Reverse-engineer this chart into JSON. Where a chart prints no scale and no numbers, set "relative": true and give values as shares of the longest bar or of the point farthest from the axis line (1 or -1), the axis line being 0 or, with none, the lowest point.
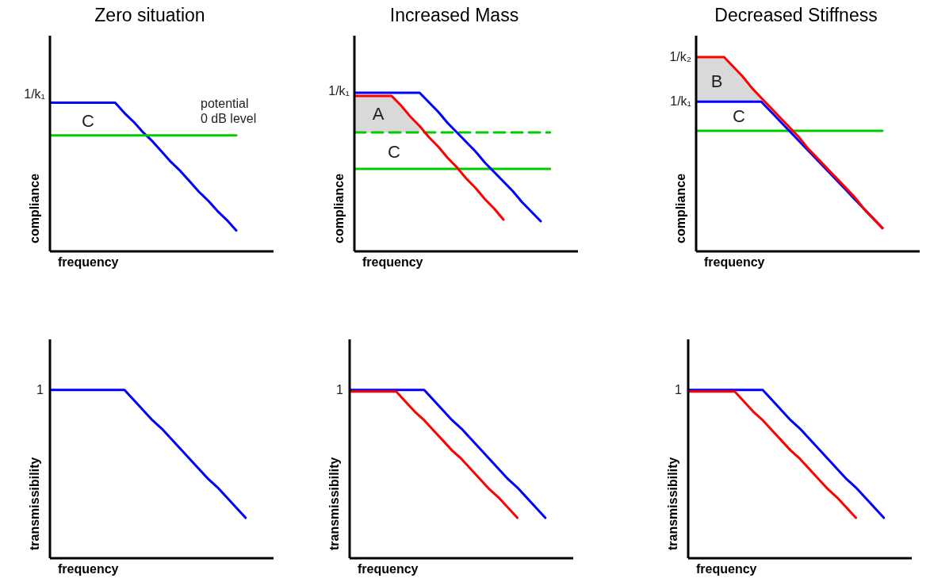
{
  "chart_data": [
    {
      "type": "line",
      "title": "Zero situation",
      "xlabel": "frequency",
      "ylabel": "compliance",
      "relative": true,
      "categories": [
        null,
        null,
        null,
        null,
        null,
        null,
        null,
        null,
        null,
        null,
        null,
        null,
        null,
        null,
        null,
        null,
        null,
        null,
        null,
        null,
        null,
        null
      ],
      "series": [
        {
          "color": "#0000ff",
          "values": [
            1,
            1,
            1,
            1,
            1,
            1,
            1,
            1,
            0.93,
            0.87,
            0.8,
            0.74,
            0.67,
            0.6,
            0.54,
            0.47,
            0.4,
            0.34,
            0.27,
            0.21,
            0.14,
            null
          ]
        },
        {
          "color": "#00cc00",
          "values": [
            0.78,
            0.78,
            0.78,
            0.78,
            0.78,
            0.78,
            0.78,
            0.78,
            0.78,
            0.78,
            0.78,
            0.78,
            0.78,
            0.78,
            0.78,
            0.78,
            0.78,
            0.78,
            0.78,
            0.78,
            0.78,
            null
          ]
        }
      ],
      "annotations": [
        "1/k₁",
        "C",
        "potential 0 dB level"
      ]
    },
    {
      "type": "line",
      "title": "Increased Mass",
      "xlabel": "frequency",
      "ylabel": "compliance",
      "relative": true,
      "categories": [
        null,
        null,
        null,
        null,
        null,
        null,
        null,
        null,
        null,
        null,
        null,
        null,
        null,
        null,
        null,
        null,
        null,
        null,
        null,
        null,
        null,
        null
      ],
      "series": [
        {
          "color": "#00cc00",
          "line_style": "dashed",
          "values": [
            0.75,
            0.75,
            0.75,
            0.75,
            0.75,
            0.75,
            0.75,
            0.75,
            0.75,
            0.75,
            0.75,
            0.75,
            0.75,
            0.75,
            0.75,
            0.75,
            0.75,
            0.75,
            0.75,
            0.75,
            0.75,
            0.75
          ]
        },
        {
          "color": "#00cc00",
          "values": [
            0.52,
            0.52,
            0.52,
            0.52,
            0.52,
            0.52,
            0.52,
            0.52,
            0.52,
            0.52,
            0.52,
            0.52,
            0.52,
            0.52,
            0.52,
            0.52,
            0.52,
            0.52,
            0.52,
            0.52,
            0.52,
            0.52
          ]
        },
        {
          "color": "#0000ff",
          "values": [
            1,
            1,
            1,
            1,
            1,
            1,
            1,
            1,
            0.94,
            0.88,
            0.81,
            0.75,
            0.69,
            0.63,
            0.56,
            0.5,
            0.44,
            0.38,
            0.31,
            0.25,
            0.19,
            null
          ]
        },
        {
          "color": "#ff0000",
          "values": [
            0.98,
            0.98,
            0.98,
            0.98,
            0.98,
            0.92,
            0.85,
            0.79,
            0.72,
            0.66,
            0.59,
            0.53,
            0.46,
            0.4,
            0.33,
            0.27,
            0.2,
            null,
            null,
            null,
            null,
            null
          ],
          "lower": [
            0.75,
            0.75,
            0.75,
            0.75,
            0.75,
            0.75,
            0.75,
            0.75,
            null,
            null,
            null,
            null,
            null,
            null,
            null,
            null,
            null,
            null,
            null,
            null,
            null,
            null
          ],
          "upper": [
            0.98,
            0.98,
            0.98,
            0.98,
            0.98,
            0.92,
            0.85,
            0.79,
            null,
            null,
            null,
            null,
            null,
            null,
            null,
            null,
            null,
            null,
            null,
            null,
            null,
            null
          ]
        }
      ],
      "annotations": [
        "1/k₁",
        "A",
        "C"
      ]
    },
    {
      "type": "line",
      "title": "Decreased Stiffness",
      "xlabel": "frequency",
      "ylabel": "compliance",
      "relative": true,
      "categories": [
        null,
        null,
        null,
        null,
        null,
        null,
        null,
        null,
        null,
        null,
        null,
        null,
        null,
        null,
        null,
        null,
        null,
        null,
        null,
        null,
        null,
        null
      ],
      "series": [
        {
          "color": "#00cc00",
          "values": [
            0.62,
            0.62,
            0.62,
            0.62,
            0.62,
            0.62,
            0.62,
            0.62,
            0.62,
            0.62,
            0.62,
            0.62,
            0.62,
            0.62,
            0.62,
            0.62,
            0.62,
            0.62,
            0.62,
            0.62,
            0.62,
            null
          ]
        },
        {
          "color": "#0000ff",
          "values": [
            0.77,
            0.77,
            0.77,
            0.77,
            0.77,
            0.77,
            0.77,
            0.77,
            0.72,
            0.67,
            0.62,
            0.57,
            0.52,
            0.47,
            0.42,
            0.37,
            0.32,
            0.27,
            0.22,
            0.17,
            0.12,
            null
          ]
        },
        {
          "color": "#ff0000",
          "values": [
            1,
            1,
            1,
            1,
            0.95,
            0.9,
            0.84,
            0.79,
            0.74,
            0.69,
            0.64,
            0.59,
            0.53,
            0.48,
            0.43,
            0.38,
            0.33,
            0.28,
            0.22,
            0.17,
            0.12,
            null
          ],
          "lower": [
            0.77,
            0.77,
            0.77,
            0.77,
            0.77,
            0.77,
            0.77,
            0.77,
            null,
            null,
            null,
            null,
            null,
            null,
            null,
            null,
            null,
            null,
            null,
            null,
            null,
            null
          ],
          "upper": [
            1,
            1,
            1,
            1,
            0.95,
            0.9,
            0.84,
            0.79,
            null,
            null,
            null,
            null,
            null,
            null,
            null,
            null,
            null,
            null,
            null,
            null,
            null,
            null
          ]
        }
      ],
      "annotations": [
        "1/k₂",
        "1/k₁",
        "B",
        "C"
      ]
    },
    {
      "type": "line",
      "xlabel": "frequency",
      "ylabel": "transmissibility",
      "relative": true,
      "categories": [
        null,
        null,
        null,
        null,
        null,
        null,
        null,
        null,
        null,
        null,
        null,
        null,
        null,
        null,
        null,
        null,
        null,
        null,
        null,
        null,
        null,
        null
      ],
      "series": [
        {
          "color": "#0000ff",
          "values": [
            1,
            1,
            1,
            1,
            1,
            1,
            1,
            1,
            1,
            0.94,
            0.88,
            0.82,
            0.77,
            0.71,
            0.65,
            0.59,
            0.53,
            0.47,
            0.42,
            0.36,
            0.3,
            0.24
          ]
        }
      ],
      "annotations": [
        "1"
      ]
    },
    {
      "type": "line",
      "xlabel": "frequency",
      "ylabel": "transmissibility",
      "relative": true,
      "categories": [
        null,
        null,
        null,
        null,
        null,
        null,
        null,
        null,
        null,
        null,
        null,
        null,
        null,
        null,
        null,
        null,
        null,
        null,
        null,
        null,
        null,
        null
      ],
      "series": [
        {
          "color": "#0000ff",
          "values": [
            1,
            1,
            1,
            1,
            1,
            1,
            1,
            1,
            1,
            0.94,
            0.88,
            0.82,
            0.77,
            0.71,
            0.65,
            0.59,
            0.53,
            0.47,
            0.42,
            0.36,
            0.3,
            0.24
          ]
        },
        {
          "color": "#ff0000",
          "values": [
            0.99,
            0.99,
            0.99,
            0.99,
            0.99,
            0.99,
            0.93,
            0.87,
            0.82,
            0.76,
            0.7,
            0.64,
            0.59,
            0.53,
            0.47,
            0.41,
            0.36,
            0.3,
            0.24,
            null,
            null,
            null
          ]
        }
      ],
      "annotations": [
        "1"
      ]
    },
    {
      "type": "line",
      "xlabel": "frequency",
      "ylabel": "transmissibility",
      "relative": true,
      "categories": [
        null,
        null,
        null,
        null,
        null,
        null,
        null,
        null,
        null,
        null,
        null,
        null,
        null,
        null,
        null,
        null,
        null,
        null,
        null,
        null,
        null,
        null
      ],
      "series": [
        {
          "color": "#0000ff",
          "values": [
            1,
            1,
            1,
            1,
            1,
            1,
            1,
            1,
            1,
            0.94,
            0.88,
            0.82,
            0.77,
            0.71,
            0.65,
            0.59,
            0.53,
            0.47,
            0.42,
            0.36,
            0.3,
            0.24
          ]
        },
        {
          "color": "#ff0000",
          "values": [
            0.99,
            0.99,
            0.99,
            0.99,
            0.99,
            0.99,
            0.93,
            0.87,
            0.82,
            0.76,
            0.7,
            0.64,
            0.59,
            0.53,
            0.47,
            0.41,
            0.36,
            0.3,
            0.24,
            null,
            null,
            null
          ]
        }
      ],
      "annotations": [
        "1"
      ]
    }
  ]
}
